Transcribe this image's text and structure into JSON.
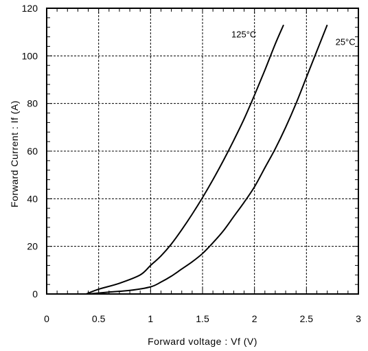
{
  "chart_data": {
    "type": "line",
    "title": "",
    "xlabel": "Forward voltage : Vf (V)",
    "ylabel": "Forward Current : If (A)",
    "xlim": [
      0,
      3
    ],
    "ylim": [
      0,
      120
    ],
    "x_ticks": [
      "0",
      "0.5",
      "1",
      "1.5",
      "2",
      "2.5",
      "3"
    ],
    "y_ticks": [
      "0",
      "20",
      "40",
      "60",
      "80",
      "100",
      "120"
    ],
    "grid": true,
    "series": [
      {
        "name": "125°C",
        "x": [
          0.38,
          0.5,
          0.7,
          0.9,
          1.0,
          1.1,
          1.2,
          1.3,
          1.4,
          1.5,
          1.6,
          1.7,
          1.8,
          1.9,
          2.0,
          2.1,
          2.2,
          2.28
        ],
        "y": [
          0,
          2,
          4.5,
          8,
          12,
          16,
          21,
          27,
          33.5,
          40.5,
          48,
          56,
          64.5,
          73.5,
          83.5,
          94,
          105,
          113
        ]
      },
      {
        "name": "25°C",
        "x": [
          0.4,
          0.6,
          0.8,
          1.0,
          1.1,
          1.2,
          1.3,
          1.4,
          1.5,
          1.6,
          1.7,
          1.8,
          1.9,
          2.0,
          2.1,
          2.2,
          2.3,
          2.4,
          2.5,
          2.6,
          2.7
        ],
        "y": [
          0,
          0.8,
          1.5,
          3,
          5,
          7.5,
          10.5,
          13.5,
          17,
          21.5,
          26.5,
          32.5,
          38.5,
          45,
          53,
          61,
          70,
          80,
          91,
          102,
          113
        ]
      }
    ]
  }
}
